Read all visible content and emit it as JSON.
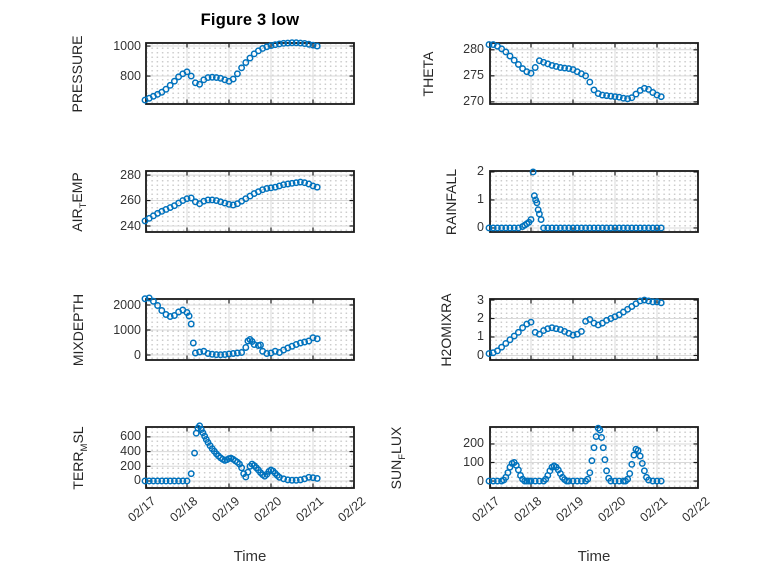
{
  "figure": {
    "title": "Figure 3 low",
    "xlabel": "Time",
    "background": "#ffffff",
    "marker_color": "#0072BD",
    "axis_color": "#1a1a1a",
    "grid_color": "#d9d9d9",
    "minor_grid_color": "#cccccc",
    "text_color": "#262626",
    "tick_label_color": "#333333"
  },
  "xaxis": {
    "lim": [
      0,
      5
    ],
    "tick_positions": [
      0,
      1,
      2,
      3,
      4,
      5
    ],
    "tick_labels": [
      "02/17",
      "02/18",
      "02/19",
      "02/20",
      "02/21",
      "02/22"
    ]
  },
  "chart_data": [
    {
      "type": "scatter",
      "name": "PRESSURE",
      "row": 0,
      "col": 0,
      "marker": "o",
      "ylabel": {
        "pre": "PRESSURE",
        "sub": "",
        "post": ""
      },
      "ylim": [
        607,
        1027
      ],
      "yticks": [
        800,
        1000
      ],
      "ytick_labels": [
        "800",
        "1000"
      ],
      "x": [
        0,
        0.1,
        0.2,
        0.3,
        0.4,
        0.5,
        0.6,
        0.7,
        0.8,
        0.9,
        1.0,
        1.1,
        1.2,
        1.3,
        1.4,
        1.5,
        1.6,
        1.7,
        1.8,
        1.9,
        2.0,
        2.1,
        2.2,
        2.3,
        2.4,
        2.5,
        2.6,
        2.7,
        2.8,
        2.9,
        3.0,
        3.1,
        3.2,
        3.3,
        3.4,
        3.5,
        3.6,
        3.7,
        3.8,
        3.9,
        4.0,
        4.1
      ],
      "y": [
        640,
        652,
        665,
        678,
        692,
        712,
        738,
        766,
        795,
        815,
        828,
        800,
        755,
        745,
        775,
        790,
        792,
        790,
        785,
        775,
        765,
        780,
        815,
        855,
        890,
        920,
        948,
        968,
        984,
        995,
        1003,
        1009,
        1014,
        1018,
        1020,
        1022,
        1022,
        1020,
        1017,
        1012,
        1006,
        1000
      ]
    },
    {
      "type": "scatter",
      "name": "THETA",
      "row": 0,
      "col": 1,
      "marker": "o",
      "ylabel": {
        "pre": "THETA",
        "sub": "",
        "post": ""
      },
      "ylim": [
        269.4,
        281.5
      ],
      "yticks": [
        270,
        275,
        280
      ],
      "ytick_labels": [
        "270",
        "275",
        "280"
      ],
      "x": [
        0,
        0.1,
        0.2,
        0.3,
        0.4,
        0.5,
        0.6,
        0.7,
        0.8,
        0.9,
        1.0,
        1.1,
        1.2,
        1.3,
        1.4,
        1.5,
        1.6,
        1.7,
        1.8,
        1.9,
        2.0,
        2.1,
        2.2,
        2.3,
        2.4,
        2.5,
        2.6,
        2.7,
        2.8,
        2.9,
        3.0,
        3.1,
        3.2,
        3.3,
        3.4,
        3.5,
        3.6,
        3.7,
        3.8,
        3.9,
        4.0,
        4.1
      ],
      "y": [
        281,
        281,
        280.7,
        280.2,
        279.6,
        278.8,
        278,
        277.2,
        276.4,
        275.8,
        275.5,
        276.6,
        277.9,
        277.6,
        277.3,
        277,
        276.8,
        276.6,
        276.5,
        276.4,
        276.2,
        275.8,
        275.4,
        275,
        273.8,
        272.3,
        271.6,
        271.3,
        271.2,
        271.1,
        271,
        270.9,
        270.7,
        270.6,
        270.8,
        271.5,
        272.2,
        272.6,
        272.4,
        271.8,
        271.3,
        271
      ]
    },
    {
      "type": "scatter",
      "name": "AIR_TEMP",
      "row": 1,
      "col": 0,
      "marker": "o",
      "ylabel": {
        "pre": "AIR",
        "sub": "T",
        "post": "EMP"
      },
      "ylim": [
        234.5,
        284
      ],
      "yticks": [
        240,
        260,
        280
      ],
      "ytick_labels": [
        "240",
        "260",
        "280"
      ],
      "x": [
        0,
        0.1,
        0.2,
        0.3,
        0.4,
        0.5,
        0.6,
        0.7,
        0.8,
        0.9,
        1.0,
        1.1,
        1.2,
        1.3,
        1.4,
        1.5,
        1.6,
        1.7,
        1.8,
        1.9,
        2.0,
        2.1,
        2.2,
        2.3,
        2.4,
        2.5,
        2.6,
        2.7,
        2.8,
        2.9,
        3.0,
        3.1,
        3.2,
        3.3,
        3.4,
        3.5,
        3.6,
        3.7,
        3.8,
        3.9,
        4.0,
        4.1
      ],
      "y": [
        244,
        246,
        248,
        250,
        251.5,
        253,
        254.5,
        256,
        258,
        260,
        261.5,
        262,
        259,
        257.5,
        259.5,
        260.5,
        260.5,
        260,
        259,
        258,
        257,
        256.5,
        257.5,
        259.5,
        261.5,
        263.5,
        265.5,
        267,
        268.5,
        269.5,
        270,
        270.5,
        271.5,
        272.5,
        273,
        273.5,
        274,
        274.5,
        274,
        273,
        271.5,
        270.5
      ]
    },
    {
      "type": "scatter",
      "name": "RAINFALL",
      "row": 1,
      "col": 1,
      "marker": "o",
      "ylabel": {
        "pre": "RAINFALL",
        "sub": "",
        "post": ""
      },
      "ylim": [
        -0.18,
        2.07
      ],
      "yticks": [
        0,
        1,
        2
      ],
      "ytick_labels": [
        "0",
        "1",
        "2"
      ],
      "x": [
        0,
        0.1,
        0.2,
        0.3,
        0.4,
        0.5,
        0.6,
        0.7,
        0.8,
        0.85,
        0.9,
        0.95,
        1.0,
        1.05,
        1.08,
        1.11,
        1.14,
        1.17,
        1.2,
        1.24,
        1.3,
        1.4,
        1.5,
        1.6,
        1.7,
        1.8,
        1.9,
        2.0,
        2.1,
        2.2,
        2.3,
        2.4,
        2.5,
        2.6,
        2.7,
        2.8,
        2.9,
        3.0,
        3.1,
        3.2,
        3.3,
        3.4,
        3.5,
        3.6,
        3.7,
        3.8,
        3.9,
        4.0,
        4.1
      ],
      "y": [
        0,
        0,
        0,
        0,
        0,
        0,
        0,
        0,
        0.05,
        0.1,
        0.15,
        0.2,
        0.3,
        2,
        1.15,
        1,
        0.9,
        0.65,
        0.5,
        0.3,
        0,
        0,
        0,
        0,
        0,
        0,
        0,
        0,
        0,
        0,
        0,
        0,
        0,
        0,
        0,
        0,
        0,
        0,
        0,
        0,
        0,
        0,
        0,
        0,
        0,
        0,
        0,
        0,
        0
      ]
    },
    {
      "type": "scatter",
      "name": "MIXDEPTH",
      "row": 2,
      "col": 0,
      "marker": "o",
      "ylabel": {
        "pre": "MIXDEPTH",
        "sub": "",
        "post": ""
      },
      "ylim": [
        -240,
        2280
      ],
      "yticks": [
        0,
        1000,
        2000
      ],
      "ytick_labels": [
        "0",
        "1000",
        "2000"
      ],
      "x": [
        0,
        0.1,
        0.2,
        0.3,
        0.4,
        0.5,
        0.6,
        0.7,
        0.8,
        0.9,
        1.0,
        1.05,
        1.1,
        1.15,
        1.2,
        1.3,
        1.4,
        1.5,
        1.6,
        1.7,
        1.8,
        1.9,
        2.0,
        2.1,
        2.2,
        2.3,
        2.4,
        2.45,
        2.5,
        2.55,
        2.6,
        2.7,
        2.75,
        2.8,
        2.9,
        3.0,
        3.1,
        3.2,
        3.3,
        3.4,
        3.5,
        3.6,
        3.7,
        3.8,
        3.9,
        4.0,
        4.1
      ],
      "y": [
        2250,
        2280,
        2150,
        1980,
        1780,
        1620,
        1540,
        1580,
        1720,
        1800,
        1700,
        1560,
        1240,
        480,
        80,
        120,
        150,
        60,
        30,
        15,
        10,
        20,
        40,
        60,
        80,
        100,
        300,
        560,
        620,
        540,
        420,
        380,
        400,
        150,
        60,
        80,
        150,
        100,
        200,
        280,
        350,
        420,
        480,
        520,
        560,
        690,
        650
      ]
    },
    {
      "type": "scatter",
      "name": "H2OMIXRA",
      "row": 2,
      "col": 1,
      "marker": "o",
      "ylabel": {
        "pre": "H2OMIXRA",
        "sub": "",
        "post": ""
      },
      "ylim": [
        -0.3,
        3.11
      ],
      "yticks": [
        0,
        1,
        2,
        3
      ],
      "ytick_labels": [
        "0",
        "1",
        "2",
        "3"
      ],
      "x": [
        0,
        0.1,
        0.2,
        0.3,
        0.4,
        0.5,
        0.6,
        0.7,
        0.8,
        0.9,
        1.0,
        1.1,
        1.2,
        1.3,
        1.4,
        1.5,
        1.6,
        1.7,
        1.8,
        1.9,
        2.0,
        2.1,
        2.2,
        2.3,
        2.4,
        2.5,
        2.6,
        2.7,
        2.8,
        2.9,
        3.0,
        3.1,
        3.2,
        3.3,
        3.4,
        3.5,
        3.6,
        3.7,
        3.8,
        3.9,
        4.0,
        4.1
      ],
      "y": [
        0.1,
        0.15,
        0.25,
        0.45,
        0.65,
        0.85,
        1.05,
        1.25,
        1.5,
        1.7,
        1.8,
        1.25,
        1.15,
        1.35,
        1.45,
        1.5,
        1.45,
        1.4,
        1.3,
        1.2,
        1.1,
        1.15,
        1.3,
        1.85,
        1.95,
        1.75,
        1.65,
        1.75,
        1.9,
        2,
        2.1,
        2.2,
        2.35,
        2.5,
        2.65,
        2.8,
        2.95,
        3,
        2.95,
        2.9,
        2.9,
        2.85
      ]
    },
    {
      "type": "scatter",
      "name": "TERR_MSL",
      "row": 3,
      "col": 0,
      "marker": "o",
      "ylabel": {
        "pre": "TERR",
        "sub": "M",
        "post": "SL"
      },
      "ylim": [
        -109,
        748
      ],
      "yticks": [
        0,
        200,
        400,
        600
      ],
      "ytick_labels": [
        "0",
        "200",
        "400",
        "600"
      ],
      "x": [
        0,
        0.1,
        0.2,
        0.3,
        0.4,
        0.5,
        0.6,
        0.7,
        0.8,
        0.9,
        1.0,
        1.1,
        1.18,
        1.22,
        1.26,
        1.3,
        1.34,
        1.38,
        1.42,
        1.46,
        1.5,
        1.55,
        1.6,
        1.65,
        1.7,
        1.75,
        1.8,
        1.85,
        1.9,
        1.95,
        2.0,
        2.05,
        2.1,
        2.15,
        2.2,
        2.25,
        2.3,
        2.35,
        2.4,
        2.45,
        2.5,
        2.55,
        2.6,
        2.65,
        2.7,
        2.75,
        2.8,
        2.85,
        2.9,
        2.95,
        3.0,
        3.05,
        3.1,
        3.15,
        3.2,
        3.3,
        3.4,
        3.5,
        3.6,
        3.7,
        3.8,
        3.9,
        4.0,
        4.1
      ],
      "y": [
        0,
        0,
        0,
        0,
        0,
        0,
        0,
        0,
        0,
        0,
        0,
        100,
        380,
        650,
        720,
        750,
        700,
        655,
        610,
        565,
        525,
        480,
        440,
        405,
        370,
        340,
        315,
        295,
        280,
        290,
        305,
        310,
        295,
        275,
        255,
        230,
        180,
        100,
        55,
        120,
        200,
        230,
        210,
        180,
        150,
        115,
        85,
        65,
        90,
        130,
        150,
        135,
        105,
        75,
        50,
        30,
        15,
        10,
        10,
        15,
        30,
        50,
        45,
        35
      ]
    },
    {
      "type": "scatter",
      "name": "SUN_FLUX",
      "row": 3,
      "col": 1,
      "marker": "o",
      "ylabel": {
        "pre": "SUN",
        "sub": "F",
        "post": "LUX"
      },
      "ylim": [
        -43,
        297
      ],
      "yticks": [
        0,
        100,
        200
      ],
      "ytick_labels": [
        "0",
        "100",
        "200"
      ],
      "x": [
        0,
        0.1,
        0.2,
        0.3,
        0.35,
        0.4,
        0.45,
        0.5,
        0.55,
        0.6,
        0.65,
        0.7,
        0.75,
        0.8,
        0.85,
        0.9,
        0.95,
        1.0,
        1.1,
        1.2,
        1.3,
        1.35,
        1.4,
        1.45,
        1.5,
        1.55,
        1.6,
        1.65,
        1.7,
        1.75,
        1.8,
        1.85,
        1.9,
        2.0,
        2.1,
        2.2,
        2.3,
        2.35,
        2.4,
        2.45,
        2.5,
        2.55,
        2.6,
        2.64,
        2.68,
        2.72,
        2.76,
        2.8,
        2.85,
        2.9,
        3.0,
        3.1,
        3.2,
        3.25,
        3.3,
        3.35,
        3.4,
        3.45,
        3.5,
        3.55,
        3.6,
        3.65,
        3.7,
        3.75,
        3.8,
        3.9,
        4.0,
        4.1
      ],
      "y": [
        0,
        0,
        0,
        0,
        5,
        20,
        45,
        75,
        95,
        100,
        85,
        60,
        30,
        10,
        0,
        0,
        0,
        0,
        0,
        0,
        0,
        10,
        30,
        55,
        75,
        82,
        75,
        60,
        40,
        20,
        8,
        0,
        0,
        0,
        0,
        0,
        0,
        10,
        45,
        110,
        180,
        240,
        285,
        275,
        235,
        180,
        115,
        55,
        15,
        0,
        0,
        0,
        0,
        0,
        10,
        40,
        90,
        140,
        172,
        165,
        135,
        95,
        55,
        20,
        5,
        0,
        0,
        0
      ]
    }
  ]
}
